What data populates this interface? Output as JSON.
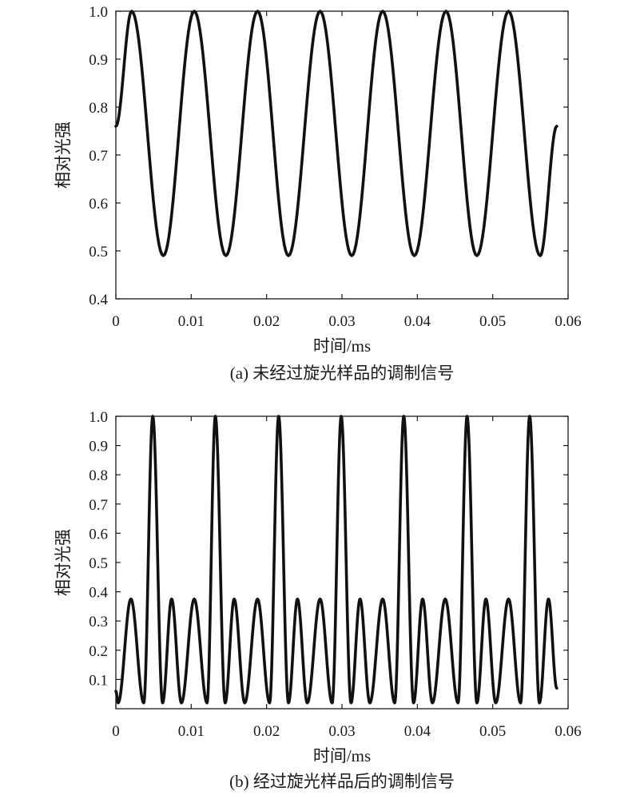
{
  "chart_data": [
    {
      "type": "line",
      "caption": "(a) 未经过旋光样品的调制信号",
      "xlabel": "时间/ms",
      "ylabel": "相对光强",
      "xlim": [
        0,
        0.06
      ],
      "ylim": [
        0.4,
        1.0
      ],
      "xticks": [
        0,
        0.01,
        0.02,
        0.03,
        0.04,
        0.05,
        0.06
      ],
      "xtick_labels": [
        "0",
        "0.01",
        "0.02",
        "0.03",
        "0.04",
        "0.05",
        "0.06"
      ],
      "yticks": [
        0.4,
        0.5,
        0.6,
        0.7,
        0.8,
        0.9,
        1.0
      ],
      "ytick_labels": [
        "0.4",
        "0.5",
        "0.6",
        "0.7",
        "0.8",
        "0.9",
        "1.0"
      ],
      "grid": false,
      "line_color": "#111111",
      "series": [
        {
          "x": [
            0,
            0.0021,
            0.0063,
            0.0104,
            0.0146,
            0.0188,
            0.0229,
            0.0271,
            0.0313,
            0.0354,
            0.0396,
            0.0438,
            0.0479,
            0.0521,
            0.0563,
            0.0585
          ],
          "y": [
            0.76,
            1.0,
            0.49,
            1.0,
            0.49,
            1.0,
            0.49,
            1.0,
            0.49,
            1.0,
            0.49,
            1.0,
            0.49,
            1.0,
            0.49,
            0.76
          ]
        }
      ]
    },
    {
      "type": "line",
      "caption": "(b) 经过旋光样品后的调制信号",
      "xlabel": "时间/ms",
      "ylabel": "相对光强",
      "xlim": [
        0,
        0.06
      ],
      "ylim": [
        0,
        1.0
      ],
      "xticks": [
        0,
        0.01,
        0.02,
        0.03,
        0.04,
        0.05,
        0.06
      ],
      "xtick_labels": [
        "0",
        "0.01",
        "0.02",
        "0.03",
        "0.04",
        "0.05",
        "0.06"
      ],
      "yticks": [
        0.1,
        0.2,
        0.3,
        0.4,
        0.5,
        0.6,
        0.7,
        0.8,
        0.9,
        1.0
      ],
      "ytick_labels": [
        "0.1",
        "0.2",
        "0.3",
        "0.4",
        "0.5",
        "0.6",
        "0.7",
        "0.8",
        "0.9",
        "1.0"
      ],
      "grid": false,
      "line_color": "#111111",
      "series": [
        {
          "x": [
            0.0,
            0.0003,
            0.002,
            0.0037,
            0.0049,
            0.0062,
            0.0074,
            0.0087,
            0.0104,
            0.0121,
            0.0132,
            0.0145,
            0.0157,
            0.0171,
            0.0188,
            0.0204,
            0.0216,
            0.0229,
            0.0241,
            0.0254,
            0.0271,
            0.0287,
            0.0299,
            0.0312,
            0.0324,
            0.0337,
            0.0354,
            0.037,
            0.0382,
            0.0395,
            0.0407,
            0.042,
            0.0437,
            0.0454,
            0.0466,
            0.0479,
            0.0491,
            0.0504,
            0.0521,
            0.0537,
            0.0549,
            0.0562,
            0.0574,
            0.0585
          ],
          "y": [
            0.06,
            0.02,
            0.375,
            0.02,
            1.0,
            0.02,
            0.375,
            0.02,
            0.375,
            0.02,
            1.0,
            0.02,
            0.375,
            0.02,
            0.375,
            0.02,
            1.0,
            0.02,
            0.375,
            0.02,
            0.375,
            0.02,
            1.0,
            0.02,
            0.375,
            0.02,
            0.375,
            0.02,
            1.0,
            0.02,
            0.375,
            0.02,
            0.375,
            0.02,
            1.0,
            0.02,
            0.375,
            0.02,
            0.375,
            0.02,
            1.0,
            0.02,
            0.375,
            0.07
          ]
        }
      ]
    }
  ]
}
